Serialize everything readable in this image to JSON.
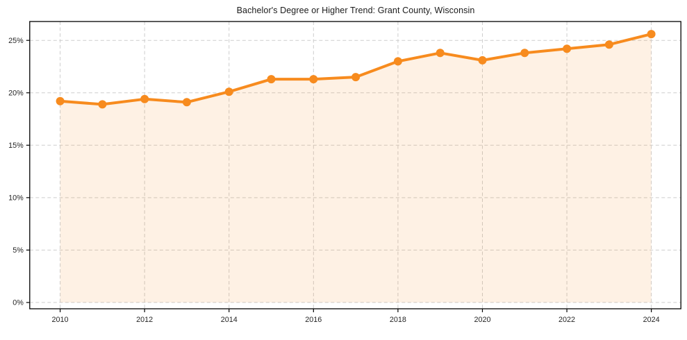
{
  "chart_data": {
    "type": "line",
    "title": "Bachelor's Degree or Higher Trend: Grant County, Wisconsin",
    "x": [
      2010,
      2011,
      2012,
      2013,
      2014,
      2015,
      2016,
      2017,
      2018,
      2019,
      2020,
      2021,
      2022,
      2023,
      2024
    ],
    "values": [
      19.2,
      18.9,
      19.4,
      19.1,
      20.1,
      21.3,
      21.3,
      21.5,
      23.0,
      23.8,
      23.1,
      23.8,
      24.2,
      24.6,
      25.6
    ],
    "xlabel": "",
    "ylabel": "",
    "xlim": [
      2009.28,
      2024.7
    ],
    "ylim": [
      -0.6,
      26.8
    ],
    "xticks": [
      2010,
      2012,
      2014,
      2016,
      2018,
      2020,
      2022,
      2024
    ],
    "xtick_labels": [
      "2010",
      "2012",
      "2014",
      "2016",
      "2018",
      "2020",
      "2022",
      "2024"
    ],
    "yticks": [
      0,
      5,
      10,
      15,
      20,
      25
    ],
    "ytick_labels": [
      "0%",
      "5%",
      "10%",
      "15%",
      "20%",
      "25%"
    ],
    "grid": true,
    "grid_style": "dashed",
    "legend": false,
    "area_fill_to": 0,
    "colors": {
      "line": "#F78B1E",
      "marker": "#F78B1E",
      "fill_rgba": "rgba(247,139,30,0.12)",
      "grid": "#CDCDCD",
      "spine": "#000000",
      "tick_text": "#262626",
      "background": "#FFFFFF"
    }
  }
}
